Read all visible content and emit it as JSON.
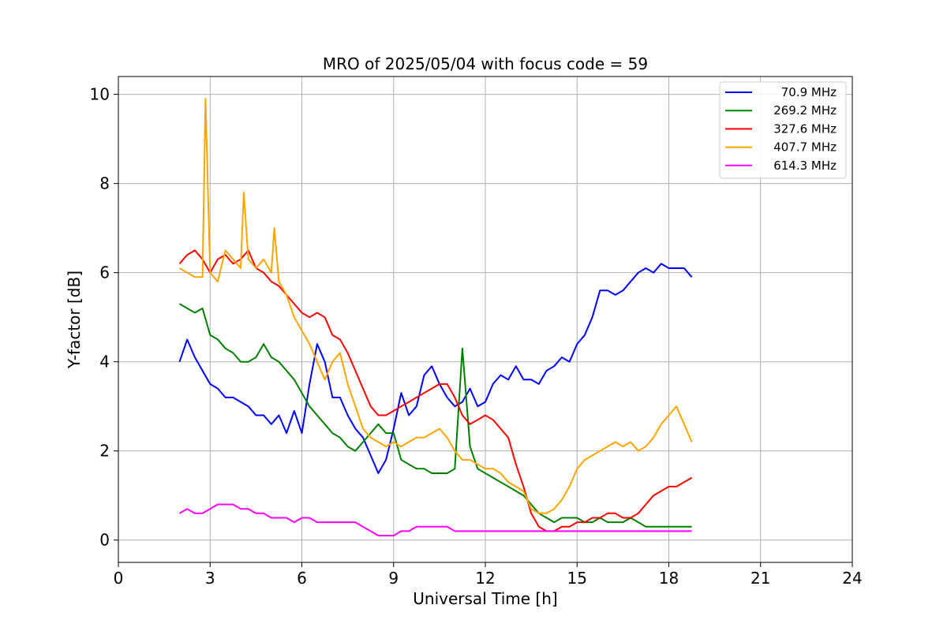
{
  "chart_data": {
    "type": "line",
    "title": "MRO of 2025/05/04 with focus code = 59",
    "xlabel": "Universal Time [h]",
    "ylabel": "Y-factor [dB]",
    "xlim": [
      0,
      24
    ],
    "ylim": [
      -0.5,
      10.4
    ],
    "xticks": [
      0,
      3,
      6,
      9,
      12,
      15,
      18,
      21,
      24
    ],
    "yticks": [
      0,
      2,
      4,
      6,
      8,
      10
    ],
    "grid": true,
    "legend_position": "top-right",
    "series": [
      {
        "name": "70.9 MHz",
        "color": "#0000ff",
        "x": [
          2.0,
          2.25,
          2.5,
          2.75,
          3.0,
          3.25,
          3.5,
          3.75,
          4.0,
          4.25,
          4.5,
          4.75,
          5.0,
          5.25,
          5.5,
          5.75,
          6.0,
          6.25,
          6.5,
          6.75,
          7.0,
          7.25,
          7.5,
          7.75,
          8.0,
          8.25,
          8.5,
          8.75,
          9.0,
          9.25,
          9.5,
          9.75,
          10.0,
          10.25,
          10.5,
          10.75,
          11.0,
          11.25,
          11.5,
          11.75,
          12.0,
          12.25,
          12.5,
          12.75,
          13.0,
          13.25,
          13.5,
          13.75,
          14.0,
          14.25,
          14.5,
          14.75,
          15.0,
          15.25,
          15.5,
          15.75,
          16.0,
          16.25,
          16.5,
          16.75,
          17.0,
          17.25,
          17.5,
          17.75,
          18.0,
          18.25,
          18.5,
          18.75
        ],
        "values": [
          4.0,
          4.5,
          4.1,
          3.8,
          3.5,
          3.4,
          3.2,
          3.2,
          3.1,
          3.0,
          2.8,
          2.8,
          2.6,
          2.8,
          2.4,
          2.9,
          2.4,
          3.5,
          4.4,
          4.0,
          3.2,
          3.2,
          2.8,
          2.5,
          2.3,
          1.9,
          1.5,
          1.8,
          2.5,
          3.3,
          2.8,
          3.0,
          3.7,
          3.9,
          3.5,
          3.2,
          3.0,
          3.1,
          3.4,
          3.0,
          3.1,
          3.5,
          3.7,
          3.6,
          3.9,
          3.6,
          3.6,
          3.5,
          3.8,
          3.9,
          4.1,
          4.0,
          4.4,
          4.6,
          5.0,
          5.6,
          5.6,
          5.5,
          5.6,
          5.8,
          6.0,
          6.1,
          6.0,
          6.2,
          6.1,
          6.1,
          6.1,
          5.9
        ]
      },
      {
        "name": "269.2 MHz",
        "color": "#008000",
        "x": [
          2.0,
          2.25,
          2.5,
          2.75,
          3.0,
          3.25,
          3.5,
          3.75,
          4.0,
          4.25,
          4.5,
          4.75,
          5.0,
          5.25,
          5.5,
          5.75,
          6.0,
          6.25,
          6.5,
          6.75,
          7.0,
          7.25,
          7.5,
          7.75,
          8.0,
          8.25,
          8.5,
          8.75,
          9.0,
          9.25,
          9.5,
          9.75,
          10.0,
          10.25,
          10.5,
          10.75,
          11.0,
          11.25,
          11.5,
          11.75,
          12.0,
          12.25,
          12.5,
          12.75,
          13.0,
          13.25,
          13.5,
          13.75,
          14.0,
          14.25,
          14.5,
          14.75,
          15.0,
          15.25,
          15.5,
          15.75,
          16.0,
          16.25,
          16.5,
          16.75,
          17.0,
          17.25,
          17.5,
          17.75,
          18.0,
          18.25,
          18.5,
          18.75
        ],
        "values": [
          5.3,
          5.2,
          5.1,
          5.2,
          4.6,
          4.5,
          4.3,
          4.2,
          4.0,
          4.0,
          4.1,
          4.4,
          4.1,
          4.0,
          3.8,
          3.6,
          3.3,
          3.0,
          2.8,
          2.6,
          2.4,
          2.3,
          2.1,
          2.0,
          2.2,
          2.4,
          2.6,
          2.4,
          2.4,
          1.8,
          1.7,
          1.6,
          1.6,
          1.5,
          1.5,
          1.5,
          1.6,
          4.3,
          2.1,
          1.6,
          1.5,
          1.4,
          1.3,
          1.2,
          1.1,
          1.0,
          0.8,
          0.6,
          0.5,
          0.4,
          0.5,
          0.5,
          0.5,
          0.4,
          0.4,
          0.5,
          0.4,
          0.4,
          0.4,
          0.5,
          0.4,
          0.3,
          0.3,
          0.3,
          0.3,
          0.3,
          0.3,
          0.3
        ]
      },
      {
        "name": "327.6 MHz",
        "color": "#ff0000",
        "x": [
          2.0,
          2.25,
          2.5,
          2.75,
          3.0,
          3.25,
          3.5,
          3.75,
          4.0,
          4.25,
          4.5,
          4.75,
          5.0,
          5.25,
          5.5,
          5.75,
          6.0,
          6.25,
          6.5,
          6.75,
          7.0,
          7.25,
          7.5,
          7.75,
          8.0,
          8.25,
          8.5,
          8.75,
          9.0,
          9.25,
          9.5,
          9.75,
          10.0,
          10.25,
          10.5,
          10.75,
          11.0,
          11.25,
          11.5,
          11.75,
          12.0,
          12.25,
          12.5,
          12.75,
          13.0,
          13.25,
          13.5,
          13.75,
          14.0,
          14.25,
          14.5,
          14.75,
          15.0,
          15.25,
          15.5,
          15.75,
          16.0,
          16.25,
          16.5,
          16.75,
          17.0,
          17.25,
          17.5,
          17.75,
          18.0,
          18.25,
          18.5,
          18.75
        ],
        "values": [
          6.2,
          6.4,
          6.5,
          6.3,
          6.0,
          6.3,
          6.4,
          6.2,
          6.3,
          6.5,
          6.1,
          6.0,
          5.8,
          5.7,
          5.5,
          5.3,
          5.1,
          5.0,
          5.1,
          5.0,
          4.6,
          4.5,
          4.2,
          3.8,
          3.4,
          3.0,
          2.8,
          2.8,
          2.9,
          3.0,
          3.1,
          3.2,
          3.3,
          3.4,
          3.5,
          3.5,
          3.2,
          2.8,
          2.6,
          2.7,
          2.8,
          2.7,
          2.5,
          2.3,
          1.7,
          1.2,
          0.6,
          0.3,
          0.2,
          0.2,
          0.3,
          0.3,
          0.4,
          0.4,
          0.5,
          0.5,
          0.6,
          0.6,
          0.5,
          0.5,
          0.6,
          0.8,
          1.0,
          1.1,
          1.2,
          1.2,
          1.3,
          1.4
        ]
      },
      {
        "name": "407.7 MHz",
        "color": "#ffa500",
        "x": [
          2.0,
          2.25,
          2.5,
          2.75,
          2.85,
          3.0,
          3.25,
          3.5,
          3.75,
          4.0,
          4.1,
          4.25,
          4.5,
          4.75,
          5.0,
          5.1,
          5.25,
          5.5,
          5.75,
          6.0,
          6.25,
          6.5,
          6.75,
          7.0,
          7.25,
          7.5,
          7.75,
          8.0,
          8.25,
          8.5,
          8.75,
          9.0,
          9.25,
          9.5,
          9.75,
          10.0,
          10.25,
          10.5,
          10.75,
          11.0,
          11.25,
          11.5,
          11.75,
          12.0,
          12.25,
          12.5,
          12.75,
          13.0,
          13.25,
          13.5,
          13.75,
          14.0,
          14.25,
          14.5,
          14.75,
          15.0,
          15.25,
          15.5,
          15.75,
          16.0,
          16.25,
          16.5,
          16.75,
          17.0,
          17.25,
          17.5,
          17.75,
          18.0,
          18.25,
          18.5,
          18.75
        ],
        "values": [
          6.1,
          6.0,
          5.9,
          5.9,
          9.9,
          6.0,
          5.8,
          6.5,
          6.3,
          6.1,
          7.8,
          6.3,
          6.1,
          6.3,
          6.0,
          7.0,
          5.8,
          5.5,
          5.0,
          4.7,
          4.4,
          4.0,
          3.6,
          4.0,
          4.2,
          3.5,
          3.0,
          2.5,
          2.3,
          2.2,
          2.1,
          2.2,
          2.1,
          2.2,
          2.3,
          2.3,
          2.4,
          2.5,
          2.3,
          2.0,
          1.8,
          1.8,
          1.7,
          1.6,
          1.6,
          1.5,
          1.3,
          1.2,
          1.1,
          0.7,
          0.6,
          0.6,
          0.7,
          0.9,
          1.2,
          1.6,
          1.8,
          1.9,
          2.0,
          2.1,
          2.2,
          2.1,
          2.2,
          2.0,
          2.1,
          2.3,
          2.6,
          2.8,
          3.0,
          2.6,
          2.2
        ]
      },
      {
        "name": "614.3 MHz",
        "color": "#ff00ff",
        "x": [
          2.0,
          2.25,
          2.5,
          2.75,
          3.0,
          3.25,
          3.5,
          3.75,
          4.0,
          4.25,
          4.5,
          4.75,
          5.0,
          5.25,
          5.5,
          5.75,
          6.0,
          6.25,
          6.5,
          6.75,
          7.0,
          7.25,
          7.5,
          7.75,
          8.0,
          8.25,
          8.5,
          8.75,
          9.0,
          9.25,
          9.5,
          9.75,
          10.0,
          10.25,
          10.5,
          10.75,
          11.0,
          11.25,
          11.5,
          11.75,
          12.0,
          12.25,
          12.5,
          12.75,
          13.0,
          13.25,
          13.5,
          13.75,
          14.0,
          14.25,
          14.5,
          14.75,
          15.0,
          15.25,
          15.5,
          15.75,
          16.0,
          16.25,
          16.5,
          16.75,
          17.0,
          17.25,
          17.5,
          17.75,
          18.0,
          18.25,
          18.5,
          18.75
        ],
        "values": [
          0.6,
          0.7,
          0.6,
          0.6,
          0.7,
          0.8,
          0.8,
          0.8,
          0.7,
          0.7,
          0.6,
          0.6,
          0.5,
          0.5,
          0.5,
          0.4,
          0.5,
          0.5,
          0.4,
          0.4,
          0.4,
          0.4,
          0.4,
          0.4,
          0.3,
          0.2,
          0.1,
          0.1,
          0.1,
          0.2,
          0.2,
          0.3,
          0.3,
          0.3,
          0.3,
          0.3,
          0.2,
          0.2,
          0.2,
          0.2,
          0.2,
          0.2,
          0.2,
          0.2,
          0.2,
          0.2,
          0.2,
          0.2,
          0.2,
          0.2,
          0.2,
          0.2,
          0.2,
          0.2,
          0.2,
          0.2,
          0.2,
          0.2,
          0.2,
          0.2,
          0.2,
          0.2,
          0.2,
          0.2,
          0.2,
          0.2,
          0.2,
          0.2
        ]
      }
    ]
  }
}
